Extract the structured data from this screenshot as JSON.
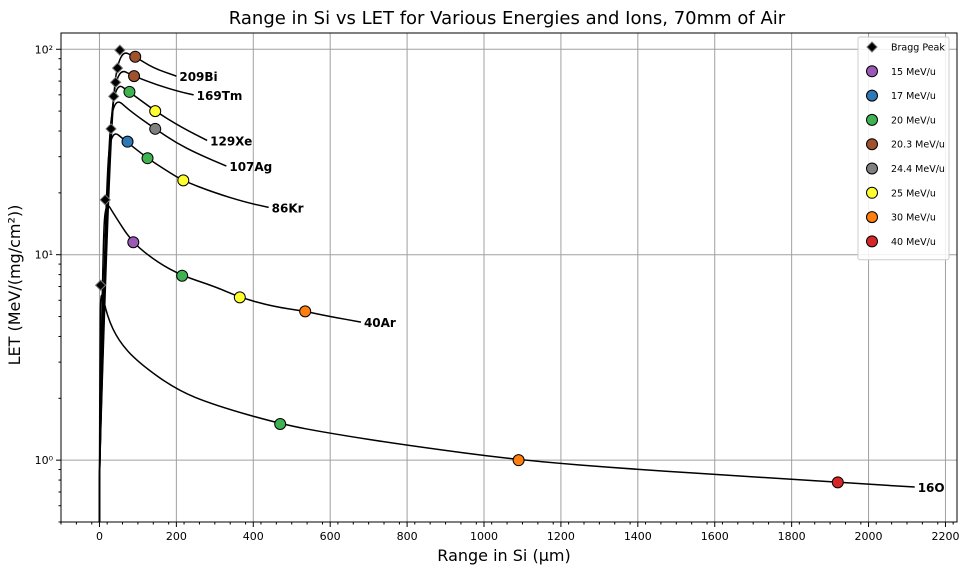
{
  "chart_data": {
    "type": "line",
    "title": "Range in Si vs LET for Various Energies and Ions, 70mm of Air",
    "xlabel": "Range in Si (μm)",
    "ylabel": "LET (MeV/(mg/cm²))",
    "xlim": [
      -100,
      2230
    ],
    "ylim": [
      0.5,
      120
    ],
    "yscale": "log",
    "grid": true,
    "legend_placement": "top-right",
    "x_ticks": [
      0,
      200,
      400,
      600,
      800,
      1000,
      1200,
      1400,
      1600,
      1800,
      2000,
      2200
    ],
    "y_ticks": [
      {
        "value": 1,
        "label": "10⁰"
      },
      {
        "value": 10,
        "label": "10¹"
      },
      {
        "value": 100,
        "label": "10²"
      }
    ],
    "legend": [
      {
        "label": "Bragg Peak",
        "marker": "diamond",
        "color": "#000000"
      },
      {
        "label": "15 MeV/u",
        "marker": "circle",
        "color": "#9b59b6"
      },
      {
        "label": "17 MeV/u",
        "marker": "circle",
        "color": "#2e78b7"
      },
      {
        "label": "20 MeV/u",
        "marker": "circle",
        "color": "#3fb34f"
      },
      {
        "label": "20.3 MeV/u",
        "marker": "circle",
        "color": "#a0522d"
      },
      {
        "label": "24.4 MeV/u",
        "marker": "circle",
        "color": "#808080"
      },
      {
        "label": "25 MeV/u",
        "marker": "circle",
        "color": "#ffff2e"
      },
      {
        "label": "30 MeV/u",
        "marker": "circle",
        "color": "#ff7f0e"
      },
      {
        "label": "40 MeV/u",
        "marker": "circle",
        "color": "#d62728"
      }
    ],
    "series": [
      {
        "name": "16O",
        "bragg": {
          "x": 3,
          "y": 7.1
        },
        "curve": [
          [
            3,
            7.1
          ],
          [
            20,
            5.0
          ],
          [
            50,
            3.8
          ],
          [
            100,
            3.0
          ],
          [
            200,
            2.2
          ],
          [
            300,
            1.85
          ],
          [
            470,
            1.5
          ],
          [
            600,
            1.35
          ],
          [
            800,
            1.18
          ],
          [
            1090,
            1.0
          ],
          [
            1400,
            0.9
          ],
          [
            1700,
            0.83
          ],
          [
            1920,
            0.78
          ],
          [
            2120,
            0.74
          ]
        ],
        "points": [
          {
            "x": 470,
            "y": 1.5,
            "energy": "20 MeV/u"
          },
          {
            "x": 1090,
            "y": 1.0,
            "energy": "30 MeV/u"
          },
          {
            "x": 1920,
            "y": 0.78,
            "energy": "40 MeV/u"
          }
        ],
        "label_at": {
          "x": 2120,
          "y": 0.74
        }
      },
      {
        "name": "40Ar",
        "bragg": {
          "x": 15,
          "y": 18.5
        },
        "curve": [
          [
            15,
            18.5
          ],
          [
            40,
            15.5
          ],
          [
            85,
            11.5
          ],
          [
            150,
            9.2
          ],
          [
            215,
            7.9
          ],
          [
            300,
            7.0
          ],
          [
            365,
            6.2
          ],
          [
            450,
            5.6
          ],
          [
            535,
            5.3
          ],
          [
            600,
            5.0
          ],
          [
            680,
            4.7
          ]
        ],
        "points": [
          {
            "x": 88,
            "y": 11.5,
            "energy": "15 MeV/u"
          },
          {
            "x": 215,
            "y": 7.9,
            "energy": "20 MeV/u"
          },
          {
            "x": 365,
            "y": 6.2,
            "energy": "25 MeV/u"
          },
          {
            "x": 535,
            "y": 5.3,
            "energy": "30 MeV/u"
          }
        ],
        "label_at": {
          "x": 680,
          "y": 4.7
        }
      },
      {
        "name": "86Kr",
        "bragg": {
          "x": 30,
          "y": 41
        },
        "curve": [
          [
            30,
            41
          ],
          [
            70,
            35.5
          ],
          [
            125,
            29.5
          ],
          [
            170,
            26
          ],
          [
            215,
            23
          ],
          [
            300,
            20
          ],
          [
            380,
            18
          ],
          [
            440,
            17
          ]
        ],
        "points": [
          {
            "x": 73,
            "y": 35.5,
            "energy": "17 MeV/u"
          },
          {
            "x": 125,
            "y": 29.5,
            "energy": "20 MeV/u"
          },
          {
            "x": 218,
            "y": 23,
            "energy": "25 MeV/u"
          }
        ],
        "label_at": {
          "x": 440,
          "y": 17
        }
      },
      {
        "name": "107Ag",
        "bragg": {
          "x": 37,
          "y": 59
        },
        "curve": [
          [
            37,
            59
          ],
          [
            80,
            50
          ],
          [
            145,
            41
          ],
          [
            200,
            35
          ],
          [
            255,
            31
          ],
          [
            330,
            27
          ]
        ],
        "points": [
          {
            "x": 145,
            "y": 41,
            "energy": "24.4 MeV/u"
          }
        ],
        "label_at": {
          "x": 330,
          "y": 27
        }
      },
      {
        "name": "129Xe",
        "bragg": {
          "x": 42,
          "y": 69
        },
        "curve": [
          [
            42,
            69
          ],
          [
            78,
            62
          ],
          [
            145,
            50
          ],
          [
            210,
            42
          ],
          [
            280,
            36
          ]
        ],
        "points": [
          {
            "x": 78,
            "y": 62,
            "energy": "20 MeV/u"
          },
          {
            "x": 145,
            "y": 50,
            "energy": "25 MeV/u"
          }
        ],
        "label_at": {
          "x": 280,
          "y": 36
        }
      },
      {
        "name": "169Tm",
        "bragg": {
          "x": 47,
          "y": 81
        },
        "curve": [
          [
            47,
            81
          ],
          [
            90,
            74
          ],
          [
            150,
            67
          ],
          [
            210,
            62
          ],
          [
            245,
            60
          ]
        ],
        "points": [
          {
            "x": 90,
            "y": 74,
            "energy": "20.3 MeV/u"
          }
        ],
        "label_at": {
          "x": 245,
          "y": 60
        }
      },
      {
        "name": "209Bi",
        "bragg": {
          "x": 53,
          "y": 99
        },
        "curve": [
          [
            53,
            99
          ],
          [
            93,
            92
          ],
          [
            140,
            81
          ],
          [
            200,
            74
          ]
        ],
        "points": [
          {
            "x": 93,
            "y": 92,
            "energy": "20.3 MeV/u"
          }
        ],
        "label_at": {
          "x": 200,
          "y": 74
        }
      }
    ]
  }
}
